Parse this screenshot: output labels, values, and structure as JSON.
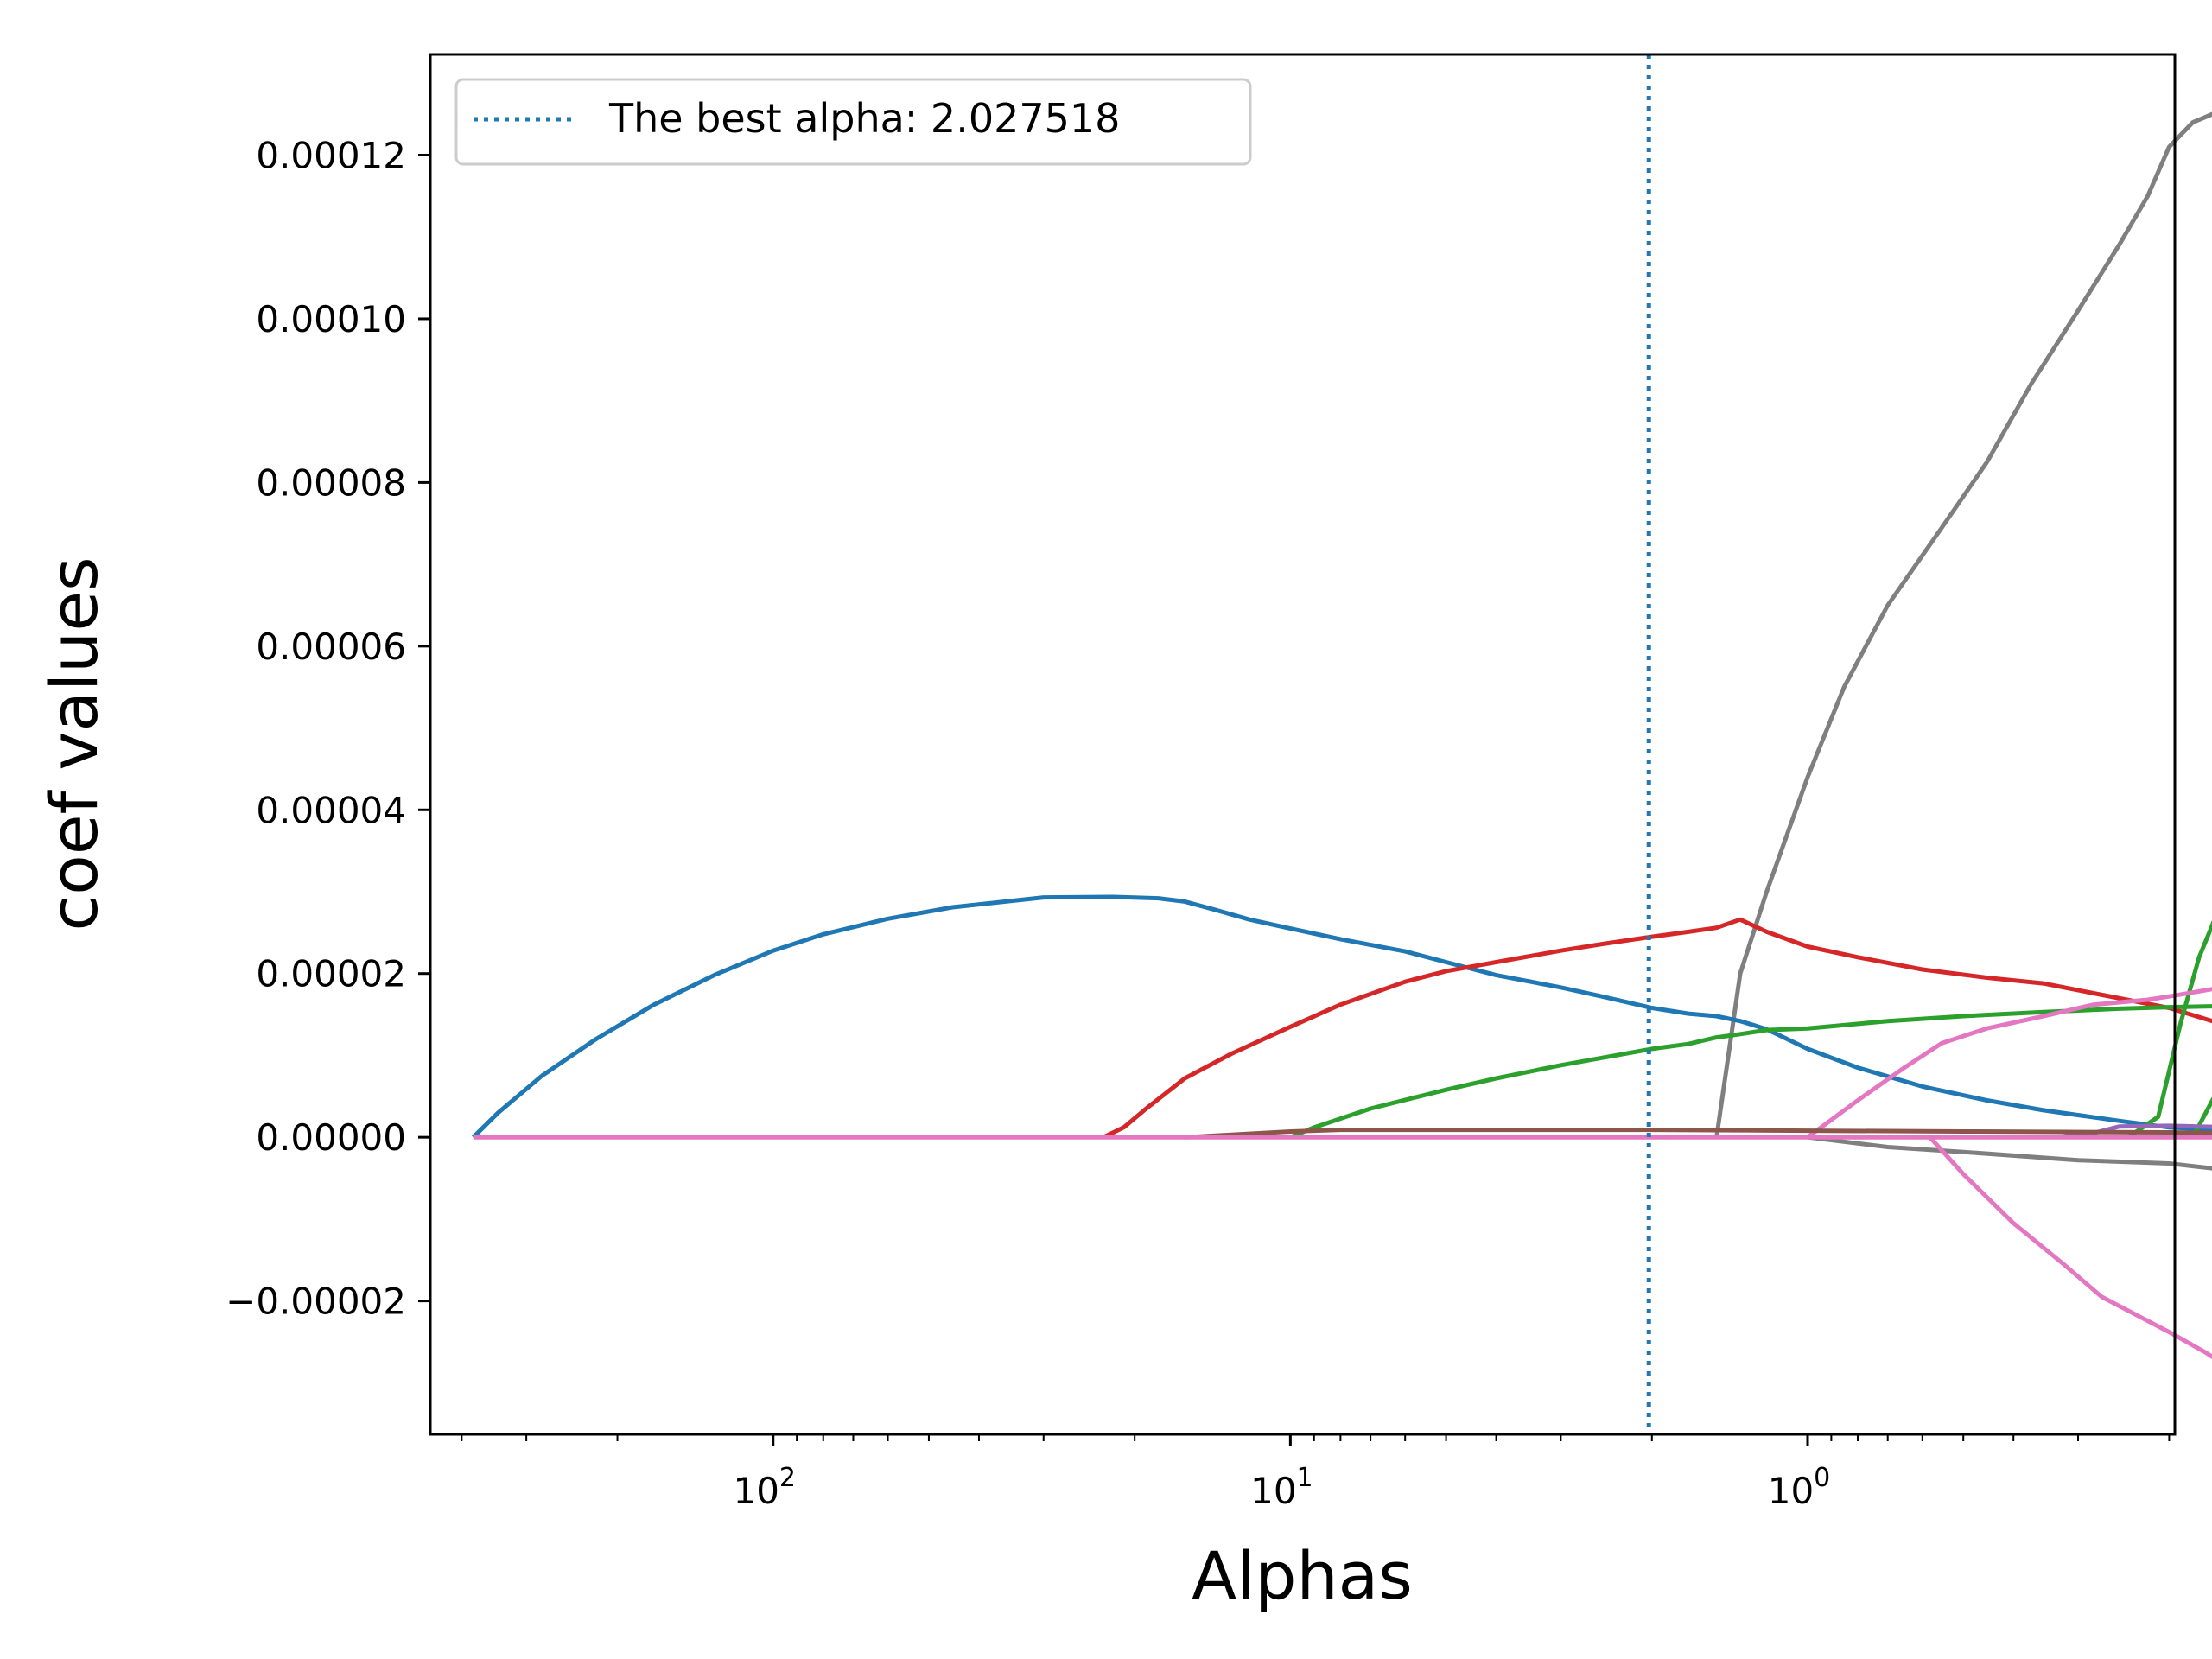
{
  "chart_data": {
    "type": "line",
    "title": "",
    "xlabel": "Alphas",
    "ylabel": "coef values",
    "x_scale": "log",
    "x_inverted": true,
    "x_tick_bases": [
      "10",
      "10",
      "10"
    ],
    "x_tick_exponents": [
      "2",
      "1",
      "0"
    ],
    "x_major_ticks": [
      100,
      10,
      1
    ],
    "y_ticks": [
      -2e-05,
      0.0,
      2e-05,
      4e-05,
      6e-05,
      8e-05,
      0.0001,
      0.00012
    ],
    "y_tick_labels": [
      "−0.00002",
      "0.00000",
      "0.00002",
      "0.00004",
      "0.00006",
      "0.00008",
      "0.00010",
      "0.00012"
    ],
    "ylim": [
      -3.63e-05,
      0.0001323
    ],
    "xlim": [
      460,
      0.195
    ],
    "grid": false,
    "legend": {
      "placement": "top-left",
      "label": "The best alpha: 2.027518"
    },
    "best_alpha": 2.027518,
    "best_alpha_color": "#1f77b4",
    "series": [
      {
        "color": "#7f7f7f",
        "points": [
          [
            1.5,
            0
          ],
          [
            1.35,
            2e-05
          ],
          [
            1.2,
            3e-05
          ],
          [
            1.0,
            4.4e-05
          ],
          [
            0.85,
            5.5e-05
          ],
          [
            0.7,
            6.5e-05
          ],
          [
            0.55,
            7.45e-05
          ],
          [
            0.45,
            8.25e-05
          ],
          [
            0.37,
            9.2e-05
          ],
          [
            0.3,
            0.000101
          ],
          [
            0.25,
            0.000109
          ],
          [
            0.22,
            0.000115
          ],
          [
            0.2,
            0.000121
          ],
          [
            0.18,
            0.000124
          ],
          [
            0.165,
            0.000125
          ],
          [
            0.148,
            0.0001238
          ]
        ]
      },
      {
        "color": "#7f7f7f",
        "points": [
          [
            1.0,
            0
          ],
          [
            0.7,
            -1.2e-06
          ],
          [
            0.5,
            -1.8e-06
          ],
          [
            0.3,
            -2.8e-06
          ],
          [
            0.2,
            -3.2e-06
          ],
          [
            0.165,
            -3.8e-06
          ],
          [
            0.148,
            -3.9e-06
          ]
        ]
      },
      {
        "color": "#1f77b4",
        "points": [
          [
            380,
            0
          ],
          [
            340,
            3e-06
          ],
          [
            280,
            7.5e-06
          ],
          [
            220,
            1.2e-05
          ],
          [
            170,
            1.62e-05
          ],
          [
            130,
            1.98e-05
          ],
          [
            100,
            2.28e-05
          ],
          [
            80,
            2.48e-05
          ],
          [
            60,
            2.67e-05
          ],
          [
            45,
            2.81e-05
          ],
          [
            30,
            2.93e-05
          ],
          [
            22,
            2.937e-05
          ],
          [
            18,
            2.92e-05
          ],
          [
            16,
            2.88e-05
          ],
          [
            14,
            2.78e-05
          ],
          [
            12,
            2.66e-05
          ],
          [
            10,
            2.55e-05
          ],
          [
            8,
            2.42e-05
          ],
          [
            6,
            2.27e-05
          ],
          [
            5,
            2.14e-05
          ],
          [
            4,
            1.98e-05
          ],
          [
            3,
            1.83e-05
          ],
          [
            2.5,
            1.72e-05
          ],
          [
            2.0,
            1.58e-05
          ],
          [
            1.7,
            1.51e-05
          ],
          [
            1.5,
            1.48e-05
          ],
          [
            1.35,
            1.42e-05
          ],
          [
            1.2,
            1.32e-05
          ],
          [
            1.0,
            1.08e-05
          ],
          [
            0.8,
            8.5e-06
          ],
          [
            0.6,
            6.2e-06
          ],
          [
            0.45,
            4.5e-06
          ],
          [
            0.35,
            3.3e-06
          ],
          [
            0.25,
            2e-06
          ],
          [
            0.2,
            1.2e-06
          ],
          [
            0.165,
            9e-07
          ],
          [
            0.148,
            9e-07
          ]
        ]
      },
      {
        "color": "#d62728",
        "points": [
          [
            23,
            0
          ],
          [
            21,
            1.2e-06
          ],
          [
            19,
            3.5e-06
          ],
          [
            16,
            7.2e-06
          ],
          [
            13,
            1.02e-05
          ],
          [
            10,
            1.35e-05
          ],
          [
            8,
            1.62e-05
          ],
          [
            6,
            1.9e-05
          ],
          [
            5,
            2.03e-05
          ],
          [
            4,
            2.14e-05
          ],
          [
            3,
            2.28e-05
          ],
          [
            2.5,
            2.36e-05
          ],
          [
            2.0,
            2.45e-05
          ],
          [
            1.7,
            2.51e-05
          ],
          [
            1.5,
            2.56e-05
          ],
          [
            1.35,
            2.66e-05
          ],
          [
            1.2,
            2.51e-05
          ],
          [
            1.0,
            2.33e-05
          ],
          [
            0.8,
            2.2e-05
          ],
          [
            0.6,
            2.05e-05
          ],
          [
            0.45,
            1.95e-05
          ],
          [
            0.35,
            1.88e-05
          ],
          [
            0.28,
            1.76e-05
          ],
          [
            0.2,
            1.58e-05
          ],
          [
            0.165,
            1.42e-05
          ],
          [
            0.148,
            1.32e-05
          ]
        ]
      },
      {
        "color": "#2ca02c",
        "points": [
          [
            10,
            0
          ],
          [
            9,
            1.2e-06
          ],
          [
            7,
            3.5e-06
          ],
          [
            5,
            5.8e-06
          ],
          [
            4,
            7.2e-06
          ],
          [
            3,
            8.8e-06
          ],
          [
            2.5,
            9.7e-06
          ],
          [
            2.0,
            1.08e-05
          ],
          [
            1.7,
            1.14e-05
          ],
          [
            1.5,
            1.22e-05
          ],
          [
            1.35,
            1.26e-05
          ],
          [
            1.2,
            1.31e-05
          ],
          [
            1.0,
            1.33e-05
          ],
          [
            0.7,
            1.42e-05
          ],
          [
            0.5,
            1.48e-05
          ],
          [
            0.35,
            1.53e-05
          ],
          [
            0.25,
            1.57e-05
          ],
          [
            0.2,
            1.59e-05
          ],
          [
            0.165,
            1.6e-05
          ],
          [
            0.148,
            1.58e-05
          ]
        ]
      },
      {
        "color": "#2ca02c",
        "points": [
          [
            0.24,
            0
          ],
          [
            0.21,
            2.5e-06
          ],
          [
            0.19,
            1.4e-05
          ],
          [
            0.175,
            2.2e-05
          ],
          [
            0.16,
            2.8e-05
          ],
          [
            0.148,
            3.33e-05
          ]
        ]
      },
      {
        "color": "#2ca02c",
        "points": [
          [
            0.18,
            0
          ],
          [
            0.165,
            4.5e-06
          ],
          [
            0.148,
            9.5e-06
          ]
        ]
      },
      {
        "color": "#e377c2",
        "points": [
          [
            1.0,
            0
          ],
          [
            0.8,
            4.5e-06
          ],
          [
            0.65,
            8.5e-06
          ],
          [
            0.55,
            1.15e-05
          ],
          [
            0.45,
            1.33e-05
          ],
          [
            0.35,
            1.48e-05
          ],
          [
            0.28,
            1.62e-05
          ],
          [
            0.22,
            1.68e-05
          ],
          [
            0.2,
            1.72e-05
          ],
          [
            0.165,
            1.81e-05
          ],
          [
            0.148,
            1.9e-05
          ]
        ]
      },
      {
        "color": "#e377c2",
        "points": [
          [
            0.58,
            0
          ],
          [
            0.5,
            -4.5e-06
          ],
          [
            0.4,
            -1.05e-05
          ],
          [
            0.32,
            -1.55e-05
          ],
          [
            0.27,
            -1.95e-05
          ],
          [
            0.23,
            -2.18e-05
          ],
          [
            0.2,
            -2.38e-05
          ],
          [
            0.17,
            -2.63e-05
          ],
          [
            0.148,
            -2.88e-05
          ]
        ]
      },
      {
        "color": "#9467bd",
        "points": [
          [
            0.33,
            0
          ],
          [
            0.28,
            5e-07
          ],
          [
            0.25,
            1.3e-06
          ],
          [
            0.2,
            1.4e-06
          ],
          [
            0.148,
            1.2e-06
          ]
        ]
      },
      {
        "color": "#8c564b",
        "points": [
          [
            16,
            0
          ],
          [
            13,
            3e-07
          ],
          [
            10,
            7e-07
          ],
          [
            8,
            9e-07
          ],
          [
            5,
            9e-07
          ],
          [
            2,
            9e-07
          ],
          [
            1,
            8e-07
          ],
          [
            0.5,
            7e-07
          ],
          [
            0.2,
            6e-07
          ],
          [
            0.148,
            5e-07
          ]
        ]
      },
      {
        "color": "#e377c2",
        "points": [
          [
            380,
            0
          ],
          [
            1.0,
            0
          ],
          [
            0.148,
            0
          ]
        ]
      }
    ]
  }
}
